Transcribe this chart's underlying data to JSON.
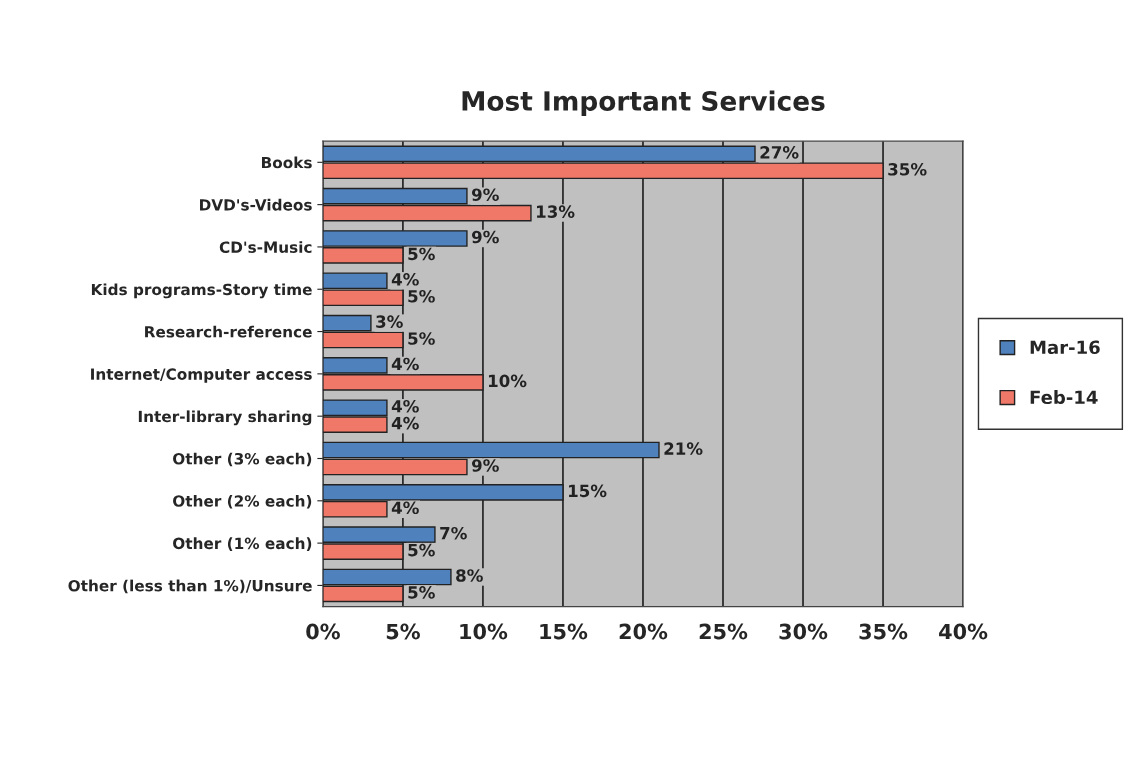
{
  "chart_data": {
    "type": "bar",
    "orientation": "horizontal",
    "title": "Most Important Services",
    "categories": [
      "Books",
      "DVD's-Videos",
      "CD's-Music",
      "Kids programs-Story time",
      "Research-reference",
      "Internet/Computer access",
      "Inter-library sharing",
      "Other (3% each)",
      "Other (2% each)",
      "Other (1% each)",
      "Other (less than 1%)/Unsure"
    ],
    "series": [
      {
        "name": "Mar-16",
        "color": "#4f81bd",
        "values": [
          27,
          9,
          9,
          4,
          3,
          4,
          4,
          21,
          15,
          7,
          8
        ],
        "value_labels": [
          "27%",
          "9%",
          "9%",
          "4%",
          "3%",
          "4%",
          "4%",
          "21%",
          "15%",
          "7%",
          "8%"
        ]
      },
      {
        "name": "Feb-14",
        "color": "#f07868",
        "values": [
          35,
          13,
          5,
          5,
          5,
          10,
          4,
          9,
          4,
          5,
          5
        ],
        "value_labels": [
          "35%",
          "13%",
          "5%",
          "5%",
          "5%",
          "10%",
          "4%",
          "9%",
          "4%",
          "5%",
          "5%"
        ]
      }
    ],
    "xlim": [
      0,
      40
    ],
    "xticks": [
      {
        "value": 0,
        "label": "0%"
      },
      {
        "value": 5,
        "label": "5%"
      },
      {
        "value": 10,
        "label": "10%"
      },
      {
        "value": 15,
        "label": "15%"
      },
      {
        "value": 20,
        "label": "20%"
      },
      {
        "value": 25,
        "label": "25%"
      },
      {
        "value": 30,
        "label": "30%"
      },
      {
        "value": 35,
        "label": "35%"
      },
      {
        "value": 40,
        "label": "40%"
      }
    ],
    "grid": "x",
    "legend": "right"
  }
}
